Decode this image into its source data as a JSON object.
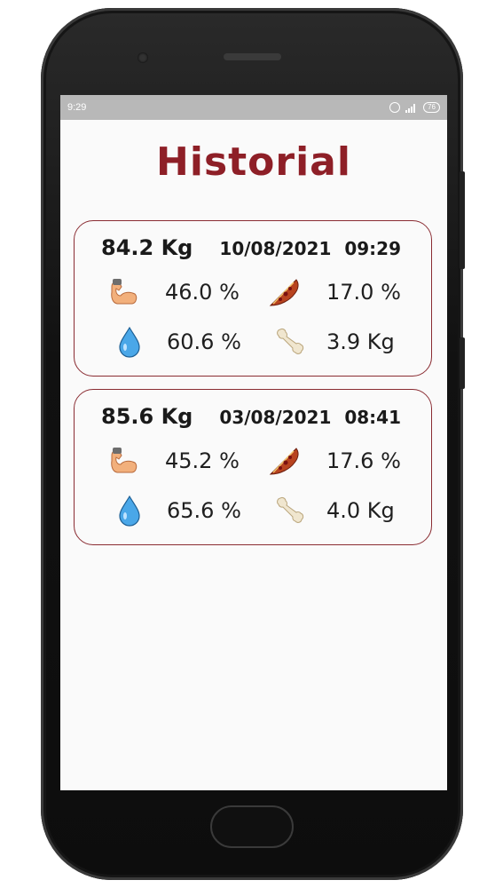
{
  "status": {
    "time": "9:29",
    "battery": "76"
  },
  "page": {
    "title": "Historial"
  },
  "records": [
    {
      "weight": "84.2 Kg",
      "date": "10/08/2021",
      "time": "09:29",
      "muscle": "46.0 %",
      "fat": "17.0 %",
      "water": "60.6 %",
      "bone": "3.9 Kg"
    },
    {
      "weight": "85.6 Kg",
      "date": "03/08/2021",
      "time": "08:41",
      "muscle": "45.2 %",
      "fat": "17.6 %",
      "water": "65.6 %",
      "bone": "4.0 Kg"
    }
  ],
  "icons": {
    "muscle": "flexed-arm-icon",
    "fat": "pizza-icon",
    "water": "water-drop-icon",
    "bone": "bone-icon"
  },
  "colors": {
    "accent": "#8e1f27",
    "status_bar": "#b8b8b8",
    "card_border": "#8a2c32"
  }
}
